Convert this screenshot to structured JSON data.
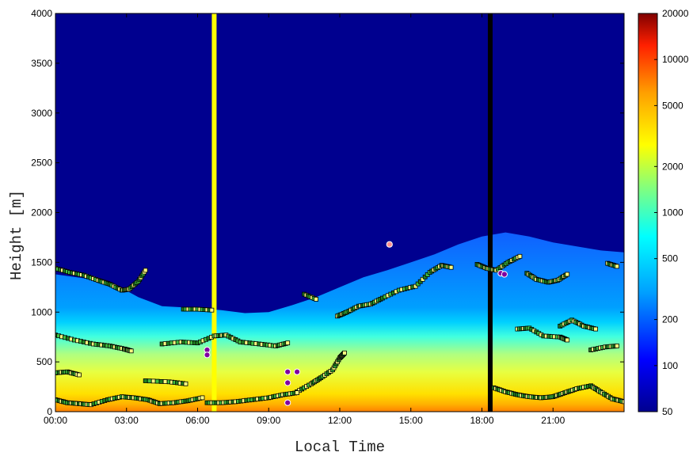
{
  "chart_data": {
    "type": "heatmap",
    "title": "",
    "xlabel": "Local Time",
    "ylabel": "Height [m]",
    "x_range_hours": [
      0,
      24
    ],
    "ylim": [
      0,
      4000
    ],
    "x_ticks": [
      {
        "hour": 0,
        "label": "00:00"
      },
      {
        "hour": 3,
        "label": "03:00"
      },
      {
        "hour": 6,
        "label": "06:00"
      },
      {
        "hour": 9,
        "label": "09:00"
      },
      {
        "hour": 12,
        "label": "12:00"
      },
      {
        "hour": 15,
        "label": "15:00"
      },
      {
        "hour": 18,
        "label": "18:00"
      },
      {
        "hour": 21,
        "label": "21:00"
      }
    ],
    "y_ticks": [
      0,
      500,
      1000,
      1500,
      2000,
      2500,
      3000,
      3500,
      4000
    ],
    "colorbar": {
      "scale": "log",
      "range": [
        50,
        20000
      ],
      "ticks": [
        50,
        100,
        200,
        500,
        1000,
        2000,
        5000,
        10000,
        20000
      ],
      "colors": [
        "#00008f",
        "#0000ff",
        "#00a0ff",
        "#00ffff",
        "#80ff80",
        "#ffff00",
        "#ffa000",
        "#ff2000",
        "#800000"
      ]
    },
    "vertical_markers": [
      {
        "hour": 6.7,
        "color": "#ffff00"
      },
      {
        "hour": 18.35,
        "color": "#000000"
      }
    ],
    "boundary_layer_top": [
      {
        "hour": 0,
        "height": 1380
      },
      {
        "hour": 1.5,
        "height": 1330
      },
      {
        "hour": 2.5,
        "height": 1280
      },
      {
        "hour": 3.5,
        "height": 1150
      },
      {
        "hour": 4.5,
        "height": 1060
      },
      {
        "hour": 6,
        "height": 1040
      },
      {
        "hour": 7,
        "height": 1020
      },
      {
        "hour": 8,
        "height": 990
      },
      {
        "hour": 9,
        "height": 1000
      },
      {
        "hour": 10,
        "height": 1070
      },
      {
        "hour": 11,
        "height": 1150
      },
      {
        "hour": 12,
        "height": 1250
      },
      {
        "hour": 13,
        "height": 1350
      },
      {
        "hour": 14,
        "height": 1420
      },
      {
        "hour": 15,
        "height": 1500
      },
      {
        "hour": 16,
        "height": 1580
      },
      {
        "hour": 17,
        "height": 1680
      },
      {
        "hour": 18,
        "height": 1760
      },
      {
        "hour": 19,
        "height": 1800
      },
      {
        "hour": 20,
        "height": 1760
      },
      {
        "hour": 21,
        "height": 1700
      },
      {
        "hour": 22,
        "height": 1660
      },
      {
        "hour": 23,
        "height": 1620
      },
      {
        "hour": 24,
        "height": 1600
      }
    ],
    "layer_series": [
      {
        "points": [
          [
            0,
            1440
          ],
          [
            0.6,
            1400
          ],
          [
            1.2,
            1370
          ],
          [
            1.8,
            1320
          ],
          [
            2.3,
            1280
          ],
          [
            2.8,
            1220
          ],
          [
            3.1,
            1230
          ],
          [
            3.5,
            1310
          ],
          [
            3.8,
            1420
          ]
        ]
      },
      {
        "points": [
          [
            5.4,
            1030
          ],
          [
            6.0,
            1030
          ],
          [
            6.6,
            1020
          ]
        ]
      },
      {
        "points": [
          [
            10.5,
            1180
          ],
          [
            11.0,
            1130
          ]
        ]
      },
      {
        "points": [
          [
            11.9,
            960
          ],
          [
            12.3,
            1000
          ],
          [
            12.8,
            1060
          ],
          [
            13.3,
            1080
          ],
          [
            13.8,
            1140
          ],
          [
            14.5,
            1220
          ],
          [
            15.2,
            1260
          ],
          [
            15.8,
            1400
          ],
          [
            16.3,
            1470
          ],
          [
            16.7,
            1450
          ]
        ]
      },
      {
        "points": [
          [
            17.8,
            1480
          ],
          [
            18.2,
            1440
          ],
          [
            18.6,
            1420
          ],
          [
            19.1,
            1500
          ],
          [
            19.6,
            1560
          ]
        ]
      },
      {
        "points": [
          [
            19.9,
            1390
          ],
          [
            20.3,
            1330
          ],
          [
            20.8,
            1300
          ],
          [
            21.2,
            1320
          ],
          [
            21.6,
            1380
          ]
        ]
      },
      {
        "points": [
          [
            23.3,
            1490
          ],
          [
            23.7,
            1460
          ]
        ]
      },
      {
        "points": [
          [
            0,
            770
          ],
          [
            0.8,
            720
          ],
          [
            1.6,
            680
          ],
          [
            2.3,
            660
          ],
          [
            2.9,
            630
          ],
          [
            3.2,
            610
          ]
        ]
      },
      {
        "points": [
          [
            4.5,
            680
          ],
          [
            5.3,
            700
          ],
          [
            6.0,
            690
          ],
          [
            6.7,
            760
          ],
          [
            7.2,
            770
          ],
          [
            7.8,
            700
          ],
          [
            8.6,
            680
          ],
          [
            9.3,
            660
          ],
          [
            9.8,
            690
          ]
        ]
      },
      {
        "points": [
          [
            19.5,
            830
          ],
          [
            20.0,
            840
          ],
          [
            20.6,
            760
          ],
          [
            21.3,
            750
          ],
          [
            21.6,
            720
          ]
        ]
      },
      {
        "points": [
          [
            21.3,
            860
          ],
          [
            21.8,
            920
          ],
          [
            22.3,
            860
          ],
          [
            22.8,
            830
          ]
        ]
      },
      {
        "points": [
          [
            22.6,
            620
          ],
          [
            23.2,
            650
          ],
          [
            23.7,
            660
          ]
        ]
      },
      {
        "points": [
          [
            0,
            390
          ],
          [
            0.5,
            400
          ],
          [
            1.0,
            370
          ]
        ]
      },
      {
        "points": [
          [
            3.8,
            310
          ],
          [
            4.8,
            300
          ],
          [
            5.5,
            280
          ]
        ]
      },
      {
        "points": [
          [
            10.2,
            200
          ],
          [
            10.8,
            280
          ],
          [
            11.2,
            340
          ],
          [
            11.7,
            420
          ],
          [
            12.0,
            540
          ],
          [
            12.2,
            590
          ]
        ]
      },
      {
        "points": [
          [
            0,
            120
          ],
          [
            0.5,
            90
          ],
          [
            1.0,
            80
          ],
          [
            1.5,
            70
          ],
          [
            2.2,
            120
          ],
          [
            2.8,
            150
          ],
          [
            3.3,
            140
          ],
          [
            3.9,
            120
          ],
          [
            4.4,
            80
          ],
          [
            5.0,
            90
          ],
          [
            5.6,
            110
          ],
          [
            6.2,
            140
          ]
        ]
      },
      {
        "points": [
          [
            6.4,
            90
          ],
          [
            7.0,
            90
          ],
          [
            7.6,
            100
          ],
          [
            8.3,
            120
          ],
          [
            9.0,
            140
          ],
          [
            9.6,
            170
          ],
          [
            10.2,
            190
          ]
        ]
      },
      {
        "points": [
          [
            18.5,
            240
          ],
          [
            19.0,
            200
          ],
          [
            19.5,
            170
          ],
          [
            20.0,
            150
          ],
          [
            20.5,
            140
          ],
          [
            21.0,
            150
          ],
          [
            21.5,
            190
          ],
          [
            22.0,
            230
          ],
          [
            22.6,
            260
          ],
          [
            23.0,
            200
          ],
          [
            23.5,
            130
          ],
          [
            24.0,
            100
          ]
        ]
      }
    ],
    "circle_markers": [
      {
        "hour": 6.4,
        "height": 620,
        "color": "#8000a0"
      },
      {
        "hour": 6.4,
        "height": 570,
        "color": "#8000a0"
      },
      {
        "hour": 9.8,
        "height": 400,
        "color": "#8000a0"
      },
      {
        "hour": 10.2,
        "height": 400,
        "color": "#8000a0"
      },
      {
        "hour": 9.8,
        "height": 290,
        "color": "#8000a0"
      },
      {
        "hour": 9.8,
        "height": 90,
        "color": "#8000a0"
      },
      {
        "hour": 14.1,
        "height": 1680,
        "color": "#ff9090"
      },
      {
        "hour": 18.8,
        "height": 1390,
        "color": "#8000a0"
      },
      {
        "hour": 18.95,
        "height": 1380,
        "color": "#8000a0"
      }
    ]
  }
}
